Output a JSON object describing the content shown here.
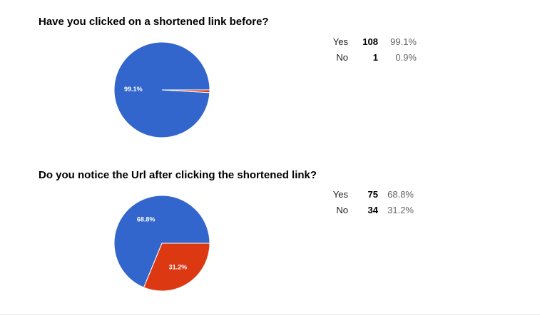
{
  "chart_data": [
    {
      "type": "pie",
      "title": "Have you clicked on a shortened link before?",
      "categories": [
        "Yes",
        "No"
      ],
      "counts": [
        108,
        1
      ],
      "percent_labels": [
        "99.1%",
        "0.9%"
      ],
      "values": [
        99.1,
        0.9
      ],
      "slice_labels": [
        "99.1%",
        ""
      ],
      "colors": [
        "#3366cc",
        "#dc3912"
      ],
      "legend_placement": "right"
    },
    {
      "type": "pie",
      "title": "Do you notice the Url after clicking the shortened link?",
      "categories": [
        "Yes",
        "No"
      ],
      "counts": [
        75,
        34
      ],
      "percent_labels": [
        "68.8%",
        "31.2%"
      ],
      "values": [
        68.8,
        31.2
      ],
      "slice_labels": [
        "68.8%",
        "31.2%"
      ],
      "colors": [
        "#3366cc",
        "#dc3912"
      ],
      "legend_placement": "right"
    }
  ]
}
